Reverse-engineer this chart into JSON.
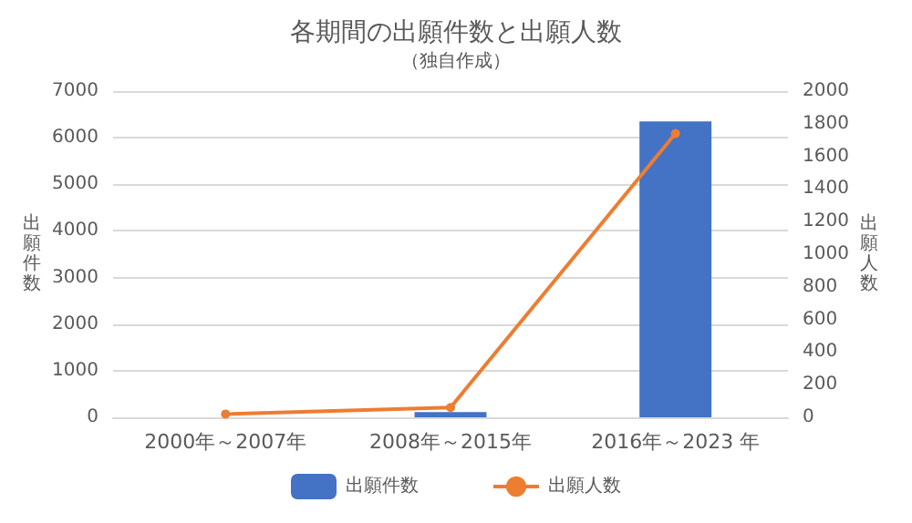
{
  "chart_data": {
    "type": "bar",
    "title": "各期間の出願件数と出願人数",
    "subtitle": "（独自作成）",
    "ylabel": "出願件数",
    "y2label": "出願人数",
    "categories": [
      "2000年～2007年",
      "2008年～2015年",
      "2016年～2023 年"
    ],
    "series": [
      {
        "name": "出願件数",
        "color": "#4472c4",
        "values": [
          0,
          110,
          6350
        ]
      },
      {
        "name": "出願人数",
        "type": "line",
        "axis": "y2",
        "color": "#ed7d31",
        "marker": "circle",
        "values": [
          20,
          60,
          1740
        ]
      }
    ],
    "ylim": [
      0,
      7000
    ],
    "yticks": [
      0,
      1000,
      2000,
      3000,
      4000,
      5000,
      6000,
      7000
    ],
    "y2lim": [
      0,
      2000
    ],
    "y2ticks": [
      0,
      200,
      400,
      600,
      800,
      1000,
      1200,
      1400,
      1600,
      1800,
      2000
    ],
    "grid": "y",
    "legend": "bottom"
  }
}
